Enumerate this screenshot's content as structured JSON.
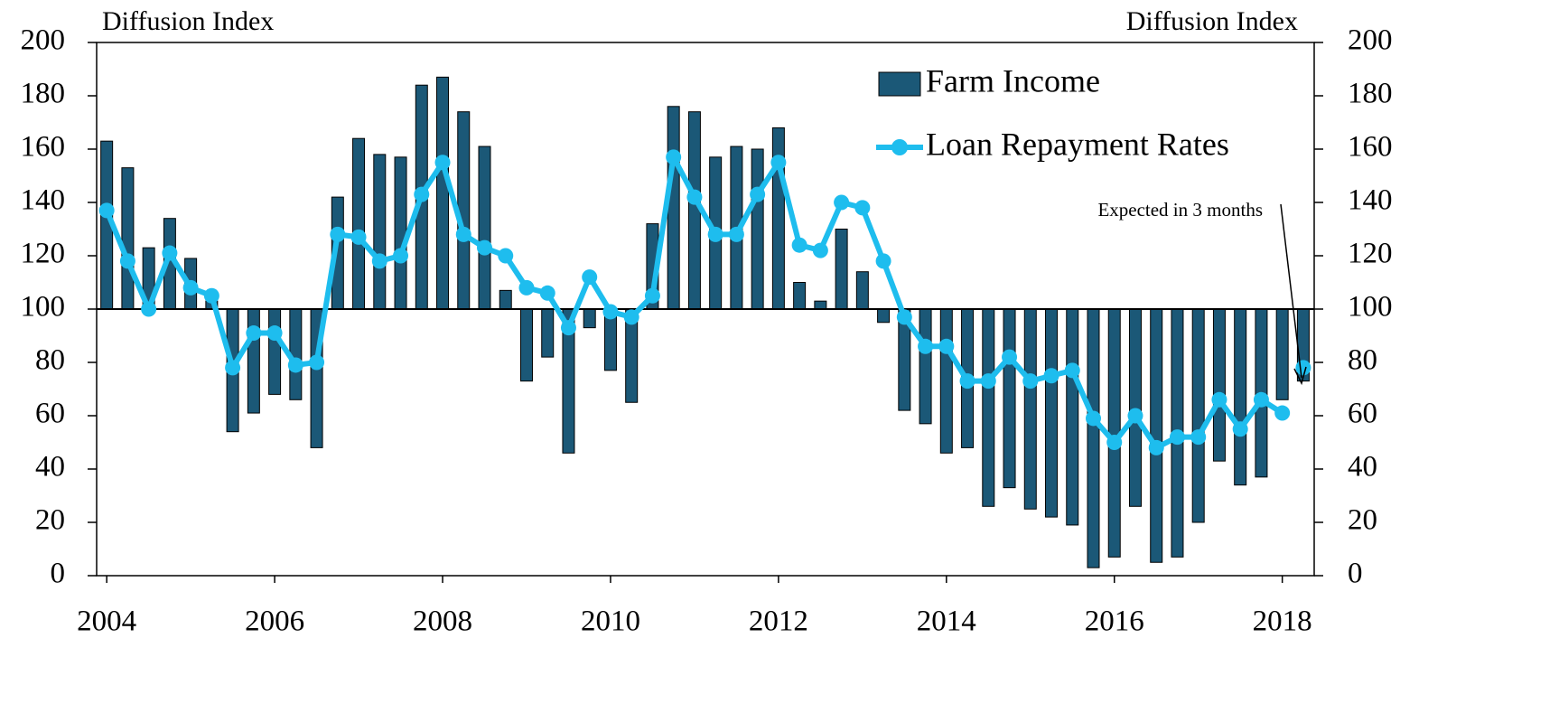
{
  "chart_data": {
    "type": "bar-line",
    "y_label_left": "Diffusion Index",
    "y_label_right": "Diffusion Index",
    "x": [
      2004,
      2004.25,
      2004.5,
      2004.75,
      2005,
      2005.25,
      2005.5,
      2005.75,
      2006,
      2006.25,
      2006.5,
      2006.75,
      2007,
      2007.25,
      2007.5,
      2007.75,
      2008,
      2008.25,
      2008.5,
      2008.75,
      2009,
      2009.25,
      2009.5,
      2009.75,
      2010,
      2010.25,
      2010.5,
      2010.75,
      2011,
      2011.25,
      2011.5,
      2011.75,
      2012,
      2012.25,
      2012.5,
      2012.75,
      2013,
      2013.25,
      2013.5,
      2013.75,
      2014,
      2014.25,
      2014.5,
      2014.75,
      2015,
      2015.25,
      2015.5,
      2015.75,
      2016,
      2016.25,
      2016.5,
      2016.75,
      2017,
      2017.25,
      2017.5,
      2017.75,
      2018
    ],
    "series": [
      {
        "name": "Farm Income",
        "type": "bar",
        "color": "#1b5877",
        "values": [
          163,
          153,
          123,
          134,
          119,
          103,
          54,
          61,
          68,
          66,
          48,
          142,
          164,
          158,
          157,
          184,
          187,
          174,
          161,
          107,
          73,
          82,
          46,
          93,
          77,
          65,
          132,
          176,
          174,
          157,
          161,
          160,
          168,
          110,
          103,
          130,
          114,
          95,
          62,
          57,
          46,
          48,
          26,
          33,
          25,
          22,
          19,
          3,
          7,
          26,
          5,
          7,
          20,
          43,
          34,
          37,
          66
        ]
      },
      {
        "name": "Loan Repayment Rates",
        "type": "line",
        "color": "#1ebdee",
        "values": [
          137,
          118,
          100,
          121,
          108,
          105,
          78,
          91,
          91,
          79,
          80,
          128,
          127,
          118,
          120,
          143,
          155,
          128,
          123,
          120,
          108,
          106,
          93,
          112,
          99,
          97,
          105,
          157,
          142,
          128,
          128,
          143,
          155,
          124,
          122,
          140,
          138,
          118,
          97,
          86,
          86,
          73,
          73,
          82,
          73,
          75,
          77,
          59,
          50,
          60,
          48,
          52,
          52,
          66,
          55,
          66,
          61
        ]
      }
    ],
    "expected": {
      "text": "Expected in 3 months",
      "x": 2018.25,
      "farm_income": 73,
      "loan_repayment": 78
    },
    "baseline": 100,
    "xlim": [
      2003.88,
      2018.38
    ],
    "xticks": [
      2004,
      2006,
      2008,
      2010,
      2012,
      2014,
      2016,
      2018
    ],
    "ylim": [
      0,
      200
    ],
    "yticks": [
      0,
      20,
      40,
      60,
      80,
      100,
      120,
      140,
      160,
      180,
      200
    ],
    "legend": "top-right"
  }
}
